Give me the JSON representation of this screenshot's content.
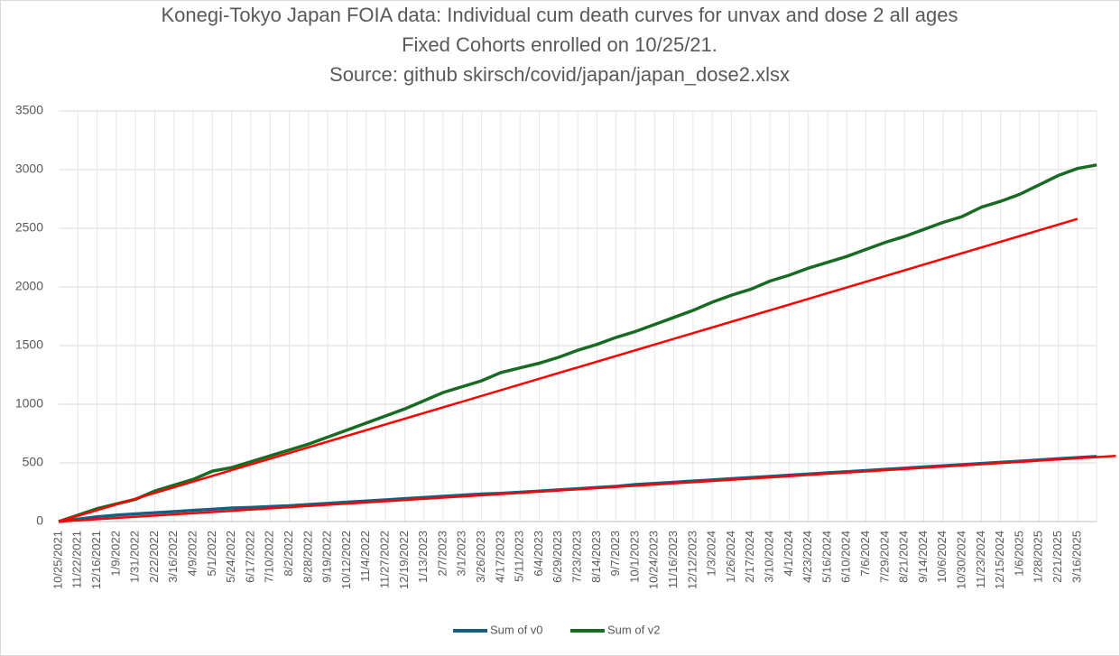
{
  "chart_data": {
    "type": "line",
    "title": [
      "Konegi-Tokyo Japan FOIA data: Individual cum death curves for unvax and dose 2 all ages",
      "Fixed Cohorts enrolled on 10/25/21.",
      "Source: github skirsch/covid/japan/japan_dose2.xlsx"
    ],
    "categories": [
      "10/25/2021",
      "11/22/2021",
      "12/16/2021",
      "1/9/2022",
      "1/31/2022",
      "2/22/2022",
      "3/16/2022",
      "4/9/2022",
      "5/1/2022",
      "5/24/2022",
      "6/17/2022",
      "7/10/2022",
      "8/2/2022",
      "8/28/2022",
      "9/19/2022",
      "10/12/2022",
      "11/4/2022",
      "11/27/2022",
      "12/19/2022",
      "1/13/2023",
      "2/7/2023",
      "3/1/2023",
      "3/26/2023",
      "4/17/2023",
      "5/11/2023",
      "6/4/2023",
      "6/29/2023",
      "7/23/2023",
      "8/14/2023",
      "9/7/2023",
      "10/1/2023",
      "10/24/2023",
      "11/16/2023",
      "12/12/2023",
      "1/3/2024",
      "1/26/2024",
      "2/17/2024",
      "3/10/2024",
      "4/1/2024",
      "4/23/2024",
      "5/16/2024",
      "6/10/2024",
      "7/6/2024",
      "7/29/2024",
      "8/21/2024",
      "9/14/2024",
      "10/6/2024",
      "10/30/2024",
      "11/23/2024",
      "12/15/2024",
      "1/6/2025",
      "1/28/2025",
      "2/21/2025",
      "3/16/2025",
      null
    ],
    "series": [
      {
        "name": "Sum of v0",
        "color": "#156082",
        "values": [
          0,
          20,
          40,
          55,
          65,
          75,
          85,
          95,
          105,
          115,
          120,
          128,
          135,
          145,
          155,
          165,
          175,
          185,
          195,
          205,
          215,
          225,
          235,
          240,
          250,
          260,
          270,
          280,
          290,
          300,
          315,
          325,
          335,
          345,
          355,
          365,
          375,
          385,
          395,
          405,
          415,
          425,
          435,
          445,
          455,
          465,
          475,
          485,
          495,
          505,
          515,
          525,
          535,
          545,
          555
        ]
      },
      {
        "name": "Sum of v2",
        "color": "#196b24",
        "values": [
          0,
          55,
          110,
          150,
          190,
          260,
          310,
          360,
          430,
          460,
          510,
          560,
          610,
          660,
          720,
          780,
          840,
          900,
          960,
          1030,
          1100,
          1150,
          1200,
          1270,
          1310,
          1350,
          1400,
          1460,
          1510,
          1570,
          1620,
          1680,
          1740,
          1800,
          1870,
          1930,
          1980,
          2050,
          2100,
          2160,
          2210,
          2260,
          2320,
          2380,
          2430,
          2490,
          2550,
          2600,
          2680,
          2730,
          2790,
          2870,
          2950,
          3010,
          3040
        ]
      }
    ],
    "trendlines": [
      {
        "color": "#ff0000",
        "x": [
          0,
          53
        ],
        "values": [
          0,
          2580
        ]
      },
      {
        "color": "#ff0000",
        "x": [
          0,
          55
        ],
        "values": [
          0,
          560
        ]
      }
    ],
    "ylim": [
      0,
      3500
    ],
    "yticks": [
      0,
      500,
      1000,
      1500,
      2000,
      2500,
      3000,
      3500
    ],
    "grid": true,
    "legend": "bottom"
  }
}
